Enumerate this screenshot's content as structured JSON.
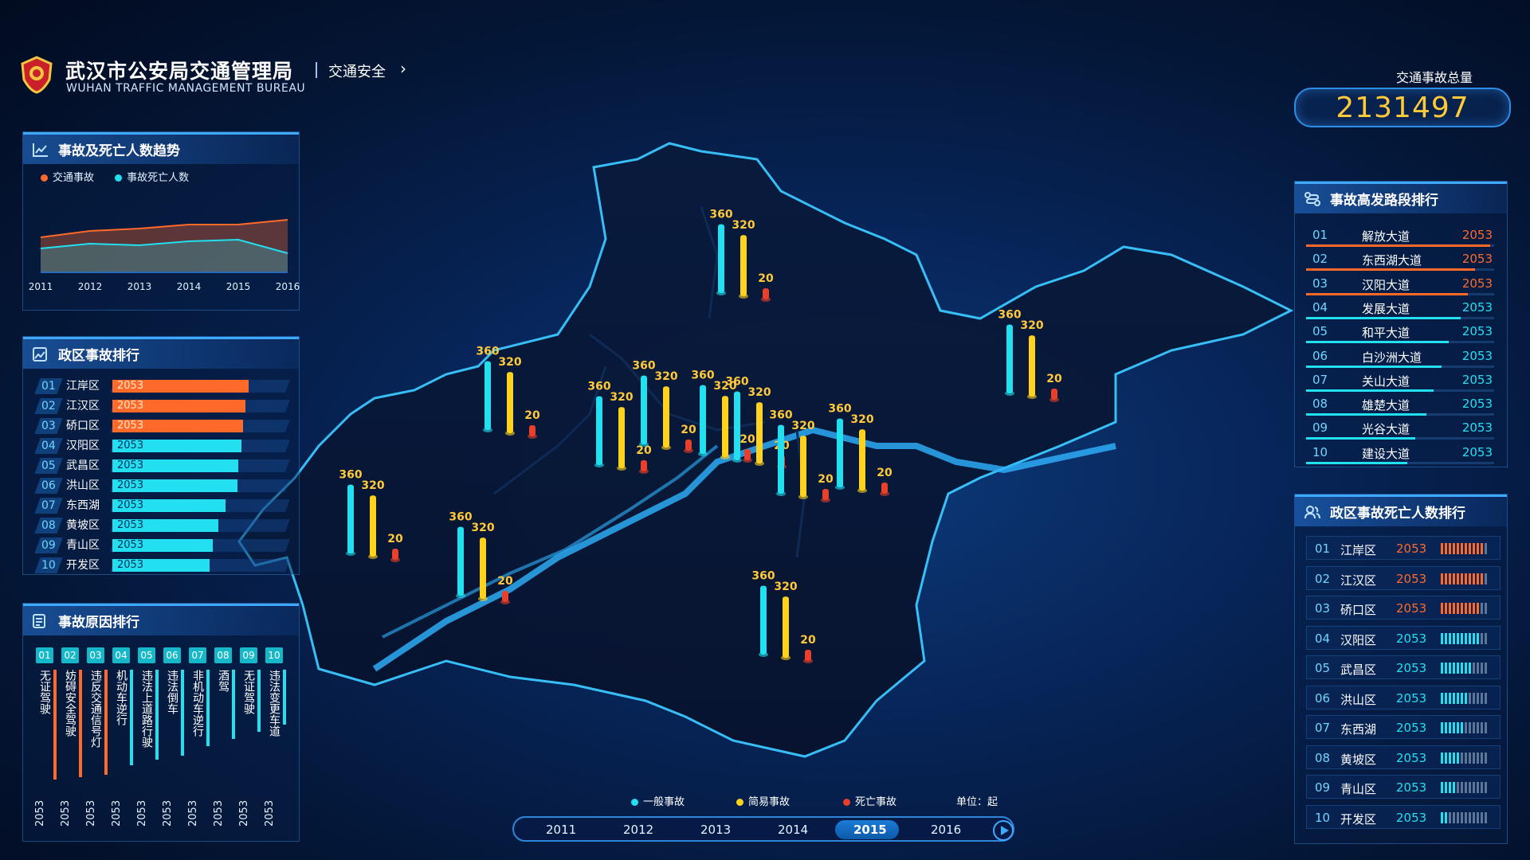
{
  "header": {
    "title_cn": "武汉市公安局交通管理局",
    "title_en": "WUHAN TRAFFIC MANAGEMENT BUREAU",
    "breadcrumb": "交通安全",
    "total_label": "交通事故总量",
    "total_value": "2131497"
  },
  "colors": {
    "cyan": "#22e0f0",
    "yellow": "#ffd21e",
    "red": "#e8402a",
    "orange": "#ff6a2b"
  },
  "trend": {
    "title": "事故及死亡人数趋势",
    "legend": [
      {
        "label": "交通事故",
        "color": "#ff6a2b"
      },
      {
        "label": "事故死亡人数",
        "color": "#22e0f0"
      }
    ],
    "chart_data": {
      "type": "area",
      "x": [
        "2011",
        "2012",
        "2013",
        "2014",
        "2015",
        "2016"
      ],
      "series": [
        {
          "name": "交通事故",
          "values": [
            44,
            52,
            55,
            60,
            60,
            66
          ]
        },
        {
          "name": "事故死亡人数",
          "values": [
            30,
            36,
            34,
            39,
            41,
            24
          ]
        }
      ],
      "ylim": [
        0,
        100
      ]
    }
  },
  "district_rank": {
    "title": "政区事故排行",
    "items": [
      {
        "idx": "01",
        "name": "江岸区",
        "value": "2053",
        "level": 0.95,
        "hot": true
      },
      {
        "idx": "02",
        "name": "江汉区",
        "value": "2053",
        "level": 0.93,
        "hot": true
      },
      {
        "idx": "03",
        "name": "硚口区",
        "value": "2053",
        "level": 0.91,
        "hot": true
      },
      {
        "idx": "04",
        "name": "汉阳区",
        "value": "2053",
        "level": 0.9,
        "hot": false
      },
      {
        "idx": "05",
        "name": "武昌区",
        "value": "2053",
        "level": 0.88,
        "hot": false
      },
      {
        "idx": "06",
        "name": "洪山区",
        "value": "2053",
        "level": 0.87,
        "hot": false
      },
      {
        "idx": "07",
        "name": "东西湖",
        "value": "2053",
        "level": 0.79,
        "hot": false
      },
      {
        "idx": "08",
        "name": "黄坡区",
        "value": "2053",
        "level": 0.74,
        "hot": false
      },
      {
        "idx": "09",
        "name": "青山区",
        "value": "2053",
        "level": 0.7,
        "hot": false
      },
      {
        "idx": "10",
        "name": "开发区",
        "value": "2053",
        "level": 0.68,
        "hot": false
      }
    ]
  },
  "cause_rank": {
    "title": "事故原因排行",
    "items": [
      {
        "idx": "01",
        "name": "无证驾驶",
        "value": "2053",
        "level": 0.92,
        "hot": true
      },
      {
        "idx": "02",
        "name": "妨碍安全驾驶",
        "value": "2053",
        "level": 0.9,
        "hot": true
      },
      {
        "idx": "03",
        "name": "违反交通信号灯",
        "value": "2053",
        "level": 0.88,
        "hot": true
      },
      {
        "idx": "04",
        "name": "机动车逆行",
        "value": "2053",
        "level": 0.8,
        "hot": false
      },
      {
        "idx": "05",
        "name": "违法上道路行驶",
        "value": "2053",
        "level": 0.75,
        "hot": false
      },
      {
        "idx": "06",
        "name": "违法倒车",
        "value": "2053",
        "level": 0.72,
        "hot": false
      },
      {
        "idx": "07",
        "name": "非机动车逆行",
        "value": "2053",
        "level": 0.64,
        "hot": false
      },
      {
        "idx": "08",
        "name": "酒驾",
        "value": "2053",
        "level": 0.58,
        "hot": false
      },
      {
        "idx": "09",
        "name": "无证驾驶",
        "value": "2053",
        "level": 0.52,
        "hot": false
      },
      {
        "idx": "10",
        "name": "违法变更车道",
        "value": "2053",
        "level": 0.46,
        "hot": false
      }
    ]
  },
  "road_rank": {
    "title": "事故高发路段排行",
    "items": [
      {
        "idx": "01",
        "name": "解放大道",
        "value": "2053",
        "level": 0.98,
        "hot": true
      },
      {
        "idx": "02",
        "name": "东西湖大道",
        "value": "2053",
        "level": 0.9,
        "hot": true
      },
      {
        "idx": "03",
        "name": "汉阳大道",
        "value": "2053",
        "level": 0.86,
        "hot": true
      },
      {
        "idx": "04",
        "name": "发展大道",
        "value": "2053",
        "level": 0.82,
        "hot": false
      },
      {
        "idx": "05",
        "name": "和平大道",
        "value": "2053",
        "level": 0.76,
        "hot": false
      },
      {
        "idx": "06",
        "name": "白沙洲大道",
        "value": "2053",
        "level": 0.72,
        "hot": false
      },
      {
        "idx": "07",
        "name": "关山大道",
        "value": "2053",
        "level": 0.68,
        "hot": false
      },
      {
        "idx": "08",
        "name": "雄楚大道",
        "value": "2053",
        "level": 0.64,
        "hot": false
      },
      {
        "idx": "09",
        "name": "光谷大道",
        "value": "2053",
        "level": 0.58,
        "hot": false
      },
      {
        "idx": "10",
        "name": "建设大道",
        "value": "2053",
        "level": 0.54,
        "hot": false
      }
    ]
  },
  "death_rank": {
    "title": "政区事故死亡人数排行",
    "items": [
      {
        "idx": "01",
        "name": "江岸区",
        "value": "2053",
        "level": 0.95,
        "hot": true
      },
      {
        "idx": "02",
        "name": "江汉区",
        "value": "2053",
        "level": 0.9,
        "hot": true
      },
      {
        "idx": "03",
        "name": "硚口区",
        "value": "2053",
        "level": 0.85,
        "hot": true
      },
      {
        "idx": "04",
        "name": "汉阳区",
        "value": "2053",
        "level": 0.8,
        "hot": false
      },
      {
        "idx": "05",
        "name": "武昌区",
        "value": "2053",
        "level": 0.7,
        "hot": false
      },
      {
        "idx": "06",
        "name": "洪山区",
        "value": "2053",
        "level": 0.6,
        "hot": false
      },
      {
        "idx": "07",
        "name": "东西湖",
        "value": "2053",
        "level": 0.5,
        "hot": false
      },
      {
        "idx": "08",
        "name": "黄坡区",
        "value": "2053",
        "level": 0.4,
        "hot": false
      },
      {
        "idx": "09",
        "name": "青山区",
        "value": "2053",
        "level": 0.3,
        "hot": false
      },
      {
        "idx": "10",
        "name": "开发区",
        "value": "2053",
        "level": 0.2,
        "hot": false
      }
    ]
  },
  "map": {
    "legend": [
      {
        "label": "一般事故",
        "color": "#22e0f0"
      },
      {
        "label": "简易事故",
        "color": "#ffd21e"
      },
      {
        "label": "死亡事故",
        "color": "#e8402a"
      }
    ],
    "unit": "单位：起",
    "chart_data": {
      "type": "bar",
      "series_names": [
        "一般事故",
        "简易事故",
        "死亡事故"
      ],
      "groups": [
        {
          "values": [
            360,
            320,
            20
          ]
        },
        {
          "values": [
            360,
            320,
            20
          ]
        },
        {
          "values": [
            360,
            320,
            20
          ]
        },
        {
          "values": [
            360,
            320,
            20
          ]
        },
        {
          "values": [
            360,
            320,
            20
          ]
        },
        {
          "values": [
            360,
            320,
            20
          ]
        },
        {
          "values": [
            360,
            320,
            20
          ]
        },
        {
          "values": [
            360,
            320,
            20
          ]
        },
        {
          "values": [
            360,
            320,
            20
          ]
        },
        {
          "values": [
            360,
            320,
            20
          ]
        },
        {
          "values": [
            360,
            320,
            20
          ]
        },
        {
          "values": [
            360,
            320,
            20
          ]
        }
      ]
    }
  },
  "timeline": {
    "years": [
      "2011",
      "2012",
      "2013",
      "2014",
      "2015",
      "2016"
    ],
    "active": "2015"
  }
}
